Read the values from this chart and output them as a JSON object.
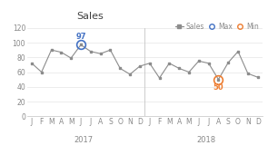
{
  "title": "Sales",
  "values": [
    72,
    60,
    90,
    87,
    79,
    97,
    88,
    85,
    90,
    65,
    57,
    68,
    72,
    52,
    72,
    65,
    60,
    75,
    72,
    50,
    73,
    88,
    58,
    53
  ],
  "max_index": 5,
  "max_value": 97,
  "min_index": 19,
  "min_value": 50,
  "max_color": "#4472C4",
  "min_color": "#ED7D31",
  "line_color": "#8c8c8c",
  "marker_color": "#8c8c8c",
  "ylim": [
    0,
    120
  ],
  "yticks": [
    0,
    20,
    40,
    60,
    80,
    100,
    120
  ],
  "year_labels": [
    "2017",
    "2018"
  ],
  "month_labels": [
    "J",
    "F",
    "M",
    "A",
    "M",
    "J",
    "J",
    "A",
    "S",
    "O",
    "N",
    "D"
  ],
  "legend_sales": "Sales",
  "legend_max": "Max",
  "legend_min": "Min",
  "title_fontsize": 8,
  "label_fontsize": 6,
  "tick_fontsize": 5.5,
  "year_fontsize": 6
}
